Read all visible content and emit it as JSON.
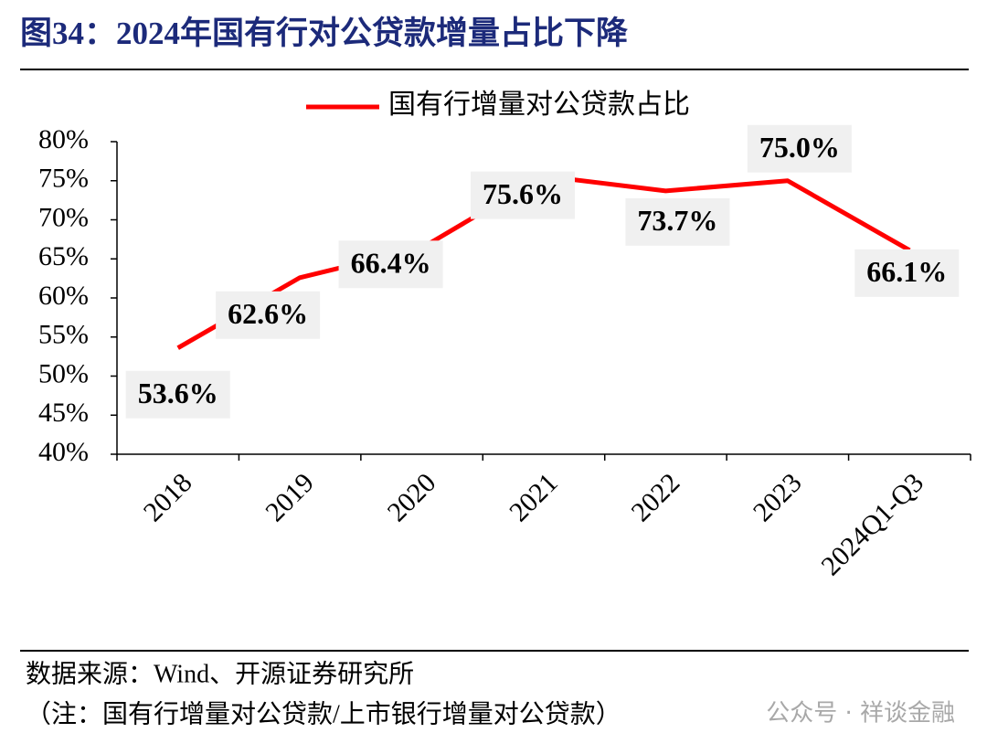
{
  "chart_data": {
    "type": "line",
    "title": "图34：2024年国有行对公贷款增量占比下降",
    "categories": [
      "2018",
      "2019",
      "2020",
      "2021",
      "2022",
      "2023",
      "2024Q1-Q3"
    ],
    "series": [
      {
        "name": "国有行增量对公贷款占比",
        "color": "#ff0000",
        "values": [
          53.6,
          62.6,
          66.4,
          75.6,
          73.7,
          75.0,
          66.1
        ],
        "value_labels": [
          "53.6%",
          "62.6%",
          "66.4%",
          "75.6%",
          "73.7%",
          "75.0%",
          "66.1%"
        ]
      }
    ],
    "ylim": [
      40,
      80
    ],
    "yticks": [
      {
        "value": 40,
        "label": "40%"
      },
      {
        "value": 45,
        "label": "45%"
      },
      {
        "value": 50,
        "label": "50%"
      },
      {
        "value": 55,
        "label": "55%"
      },
      {
        "value": 60,
        "label": "60%"
      },
      {
        "value": 65,
        "label": "65%"
      },
      {
        "value": 70,
        "label": "70%"
      },
      {
        "value": 75,
        "label": "75%"
      },
      {
        "value": 80,
        "label": "80%"
      }
    ],
    "grid": false,
    "source": "数据来源：Wind、开源证券研究所",
    "note": "（注：国有行增量对公贷款/上市银行增量对公贷款）",
    "watermark": "公众号 · 祥谈金融"
  }
}
